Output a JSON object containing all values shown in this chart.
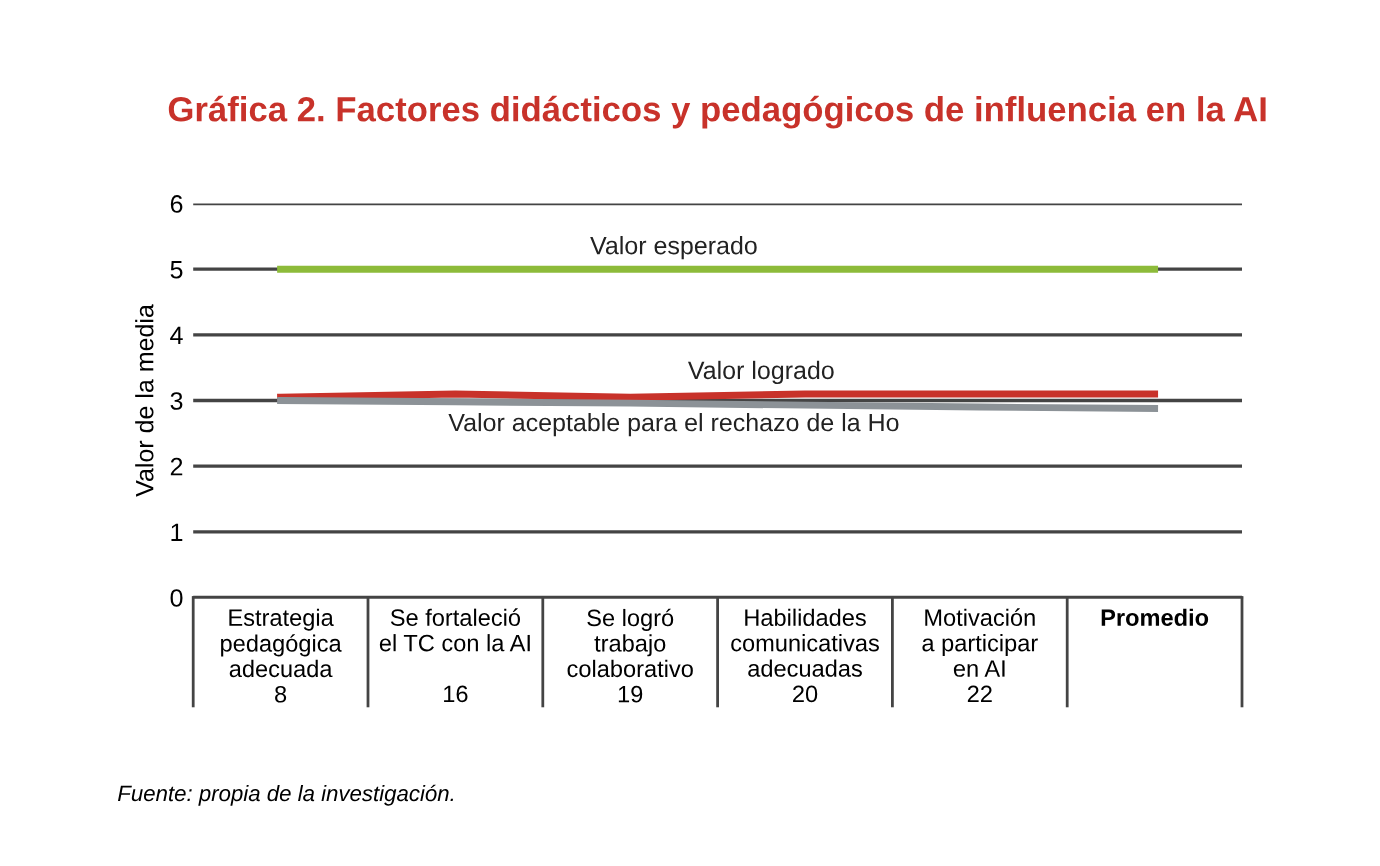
{
  "chart_data": {
    "type": "line",
    "title": "Gráfica 2. Factores didácticos y pedagógicos de influencia en la AI",
    "ylabel": "Valor de la media",
    "categories": [
      "Estrategia\npedagógica\nadecuada\n8",
      "Se fortaleció\nel TC con la AI\n\n16",
      "Se logró\ntrabajo\ncolaborativo\n19",
      "Habilidades\ncomunicativas\nadecuadas\n20",
      "Motivación\na participar\nen AI\n22",
      "Promedio\n\n\n"
    ],
    "series": [
      {
        "name": "Valor esperado",
        "color": "#8dbb3a",
        "values": [
          5,
          5,
          5,
          5,
          5,
          5
        ]
      },
      {
        "name": "Valor logrado",
        "color": "#c8322a",
        "values": [
          3.05,
          3.1,
          3.05,
          3.1,
          3.1,
          3.1
        ]
      },
      {
        "name": "Valor aceptable para el rechazo de la Ho",
        "color": "#8c9297",
        "values": [
          3.0,
          2.98,
          2.96,
          2.93,
          2.9,
          2.88
        ]
      }
    ],
    "ylim": [
      0,
      6
    ],
    "yticks": [
      0,
      1,
      2,
      3,
      4,
      5,
      6
    ],
    "grid": "y",
    "legend": false,
    "marker": "none",
    "annotations": [
      "Fuente: propia de la investigación."
    ]
  }
}
